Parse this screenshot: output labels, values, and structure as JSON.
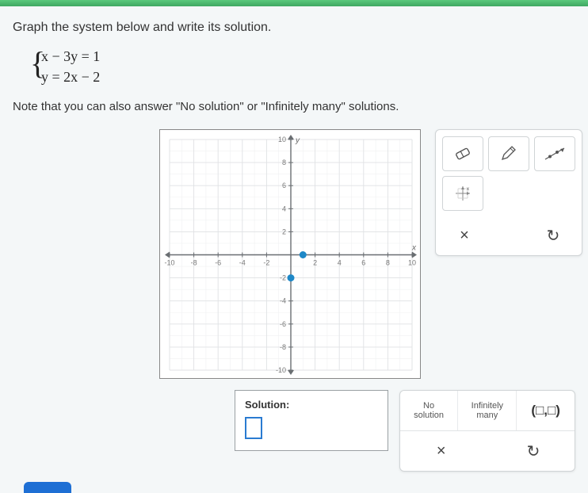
{
  "prompt_text": "Graph the system below and write its solution.",
  "equations": {
    "eq1": "x − 3y = 1",
    "eq2": "y = 2x − 2"
  },
  "note_text": "Note that you can also answer \"No solution\" or \"Infinitely many\" solutions.",
  "graph": {
    "xmin": -10,
    "xmax": 10,
    "ymin": -10,
    "ymax": 10,
    "step": 2,
    "grid_color": "#e0e2e4",
    "minor_grid_color": "#f0f1f2",
    "axis_color": "#6a6e72",
    "tick_font": 9,
    "axis_label_x": "x",
    "axis_label_y": "y",
    "points": [
      {
        "x": 1,
        "y": 0,
        "color": "#1e88c7"
      },
      {
        "x": 0,
        "y": -2,
        "color": "#1e88c7"
      }
    ]
  },
  "toolbox": {
    "eraser": "eraser-icon",
    "pencil": "pencil-icon",
    "line": "line-icon",
    "point": "point-icon",
    "close": "×",
    "reset": "↺"
  },
  "solution": {
    "label": "Solution:",
    "value": ""
  },
  "answer_panel": {
    "no_solution_line1": "No",
    "no_solution_line2": "solution",
    "inf_line1": "Infinitely",
    "inf_line2": "many",
    "tuple": "(□,□)",
    "close": "×",
    "reset": "↺"
  }
}
